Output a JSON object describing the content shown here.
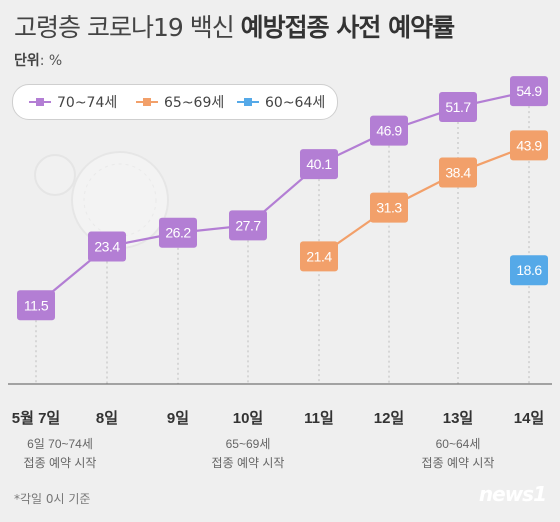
{
  "title": {
    "light": "고령층 코로나19 백신",
    "bold": "예방접종 사전 예약률"
  },
  "unit": {
    "label": "단위",
    "value": ": %"
  },
  "legend": [
    {
      "name": "70~74세",
      "color": "#b37ed4"
    },
    {
      "name": "65~69세",
      "color": "#f2a06a"
    },
    {
      "name": "60~64세",
      "color": "#55a9e8"
    }
  ],
  "chart_data": {
    "type": "line",
    "categories": [
      "5월 7일",
      "8일",
      "9일",
      "10일",
      "11일",
      "12일",
      "13일",
      "14일"
    ],
    "series": [
      {
        "name": "70~74세",
        "color": "#b37ed4",
        "values": [
          11.5,
          23.4,
          26.2,
          27.7,
          40.1,
          46.9,
          51.7,
          54.9
        ]
      },
      {
        "name": "65~69세",
        "color": "#f2a06a",
        "values": [
          null,
          null,
          null,
          null,
          21.4,
          31.3,
          38.4,
          43.9
        ]
      },
      {
        "name": "60~64세",
        "color": "#55a9e8",
        "values": [
          null,
          null,
          null,
          null,
          null,
          null,
          null,
          18.6
        ]
      }
    ],
    "annotations": [
      {
        "category_index": 0,
        "lines": [
          "6일 70~74세",
          "접종 예약 시작"
        ]
      },
      {
        "category_index": 3,
        "lines": [
          "65~69세",
          "접종 예약 시작"
        ]
      },
      {
        "category_index": 6,
        "lines": [
          "60~64세",
          "접종 예약 시작"
        ]
      }
    ],
    "ylim": [
      0,
      60
    ]
  },
  "footnote": "*각일 0시 기준",
  "logo": "news1"
}
